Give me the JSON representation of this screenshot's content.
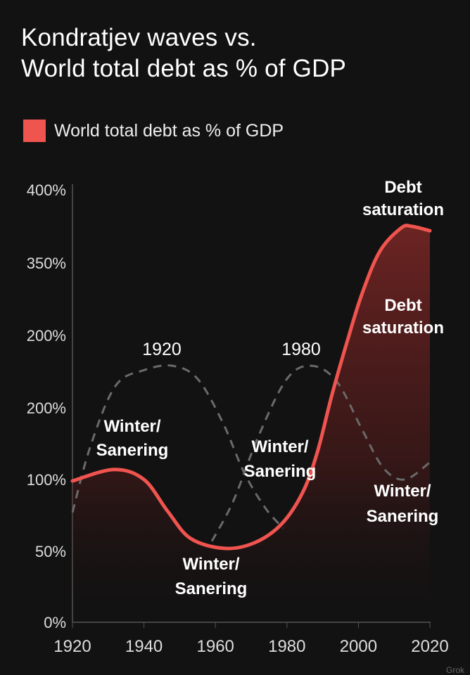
{
  "title_line1": "Kondratjev waves vs.",
  "title_line2": "World total debt as % of GDP",
  "legend": {
    "label": "World total debt as % of GDP",
    "color": "#f0544f"
  },
  "watermark": "Grok",
  "chart_data": {
    "type": "line",
    "title": "Kondratjev waves vs. World total debt as % of GDP",
    "xlabel": "",
    "ylabel": "",
    "xlim": [
      1920,
      2020
    ],
    "x_ticks": [
      "1920",
      "1940",
      "1960",
      "1980",
      "2000",
      "2020"
    ],
    "y_ticks": [
      "0%",
      "50%",
      "100%",
      "200%",
      "200%",
      "350%",
      "400%"
    ],
    "grid": false,
    "legend_position": "top-left",
    "series": [
      {
        "name": "World total debt as % of GDP",
        "style": "solid-filled",
        "color": "#f0544f",
        "x": [
          1920,
          1931.6,
          1940,
          1946.6,
          1953,
          1962.5,
          1971,
          1978.5,
          1984.4,
          1988.5,
          1992.6,
          1997,
          2001,
          2006,
          2012,
          2015,
          2020
        ],
        "y": [
          99,
          107,
          100,
          78,
          59,
          52,
          56,
          69,
          91,
          119,
          159,
          197,
          286,
          358,
          374,
          375,
          372
        ]
      },
      {
        "style": "dashed",
        "color": "#6a6a6a",
        "x": [
          1920,
          1925,
          1932,
          1940,
          1948,
          1955,
          1962,
          1968,
          1974,
          1979
        ],
        "y": [
          77,
          123,
          165,
          176,
          179,
          170,
          140,
          105,
          80,
          66
        ]
      },
      {
        "style": "dashed",
        "color": "#6a6a6a",
        "x": [
          1959,
          1965,
          1972,
          1980,
          1987,
          1994,
          2001,
          2007,
          2013,
          2020
        ],
        "y": [
          57,
          85,
          130,
          170,
          179,
          168,
          135,
          108,
          100,
          112
        ]
      }
    ],
    "annotations": {
      "wave1_label": "1920",
      "wave2_label": "1980",
      "winter1": [
        "Winter/",
        "Sanering"
      ],
      "winter2": [
        "Winter/",
        "Sanering"
      ],
      "winter3": [
        "Winter/",
        "Sanering"
      ],
      "winter4": [
        "Winter/",
        "Sanering"
      ],
      "debt1": [
        "Debt",
        "saturation"
      ],
      "debt2": [
        "Debt",
        "saturation"
      ]
    }
  }
}
